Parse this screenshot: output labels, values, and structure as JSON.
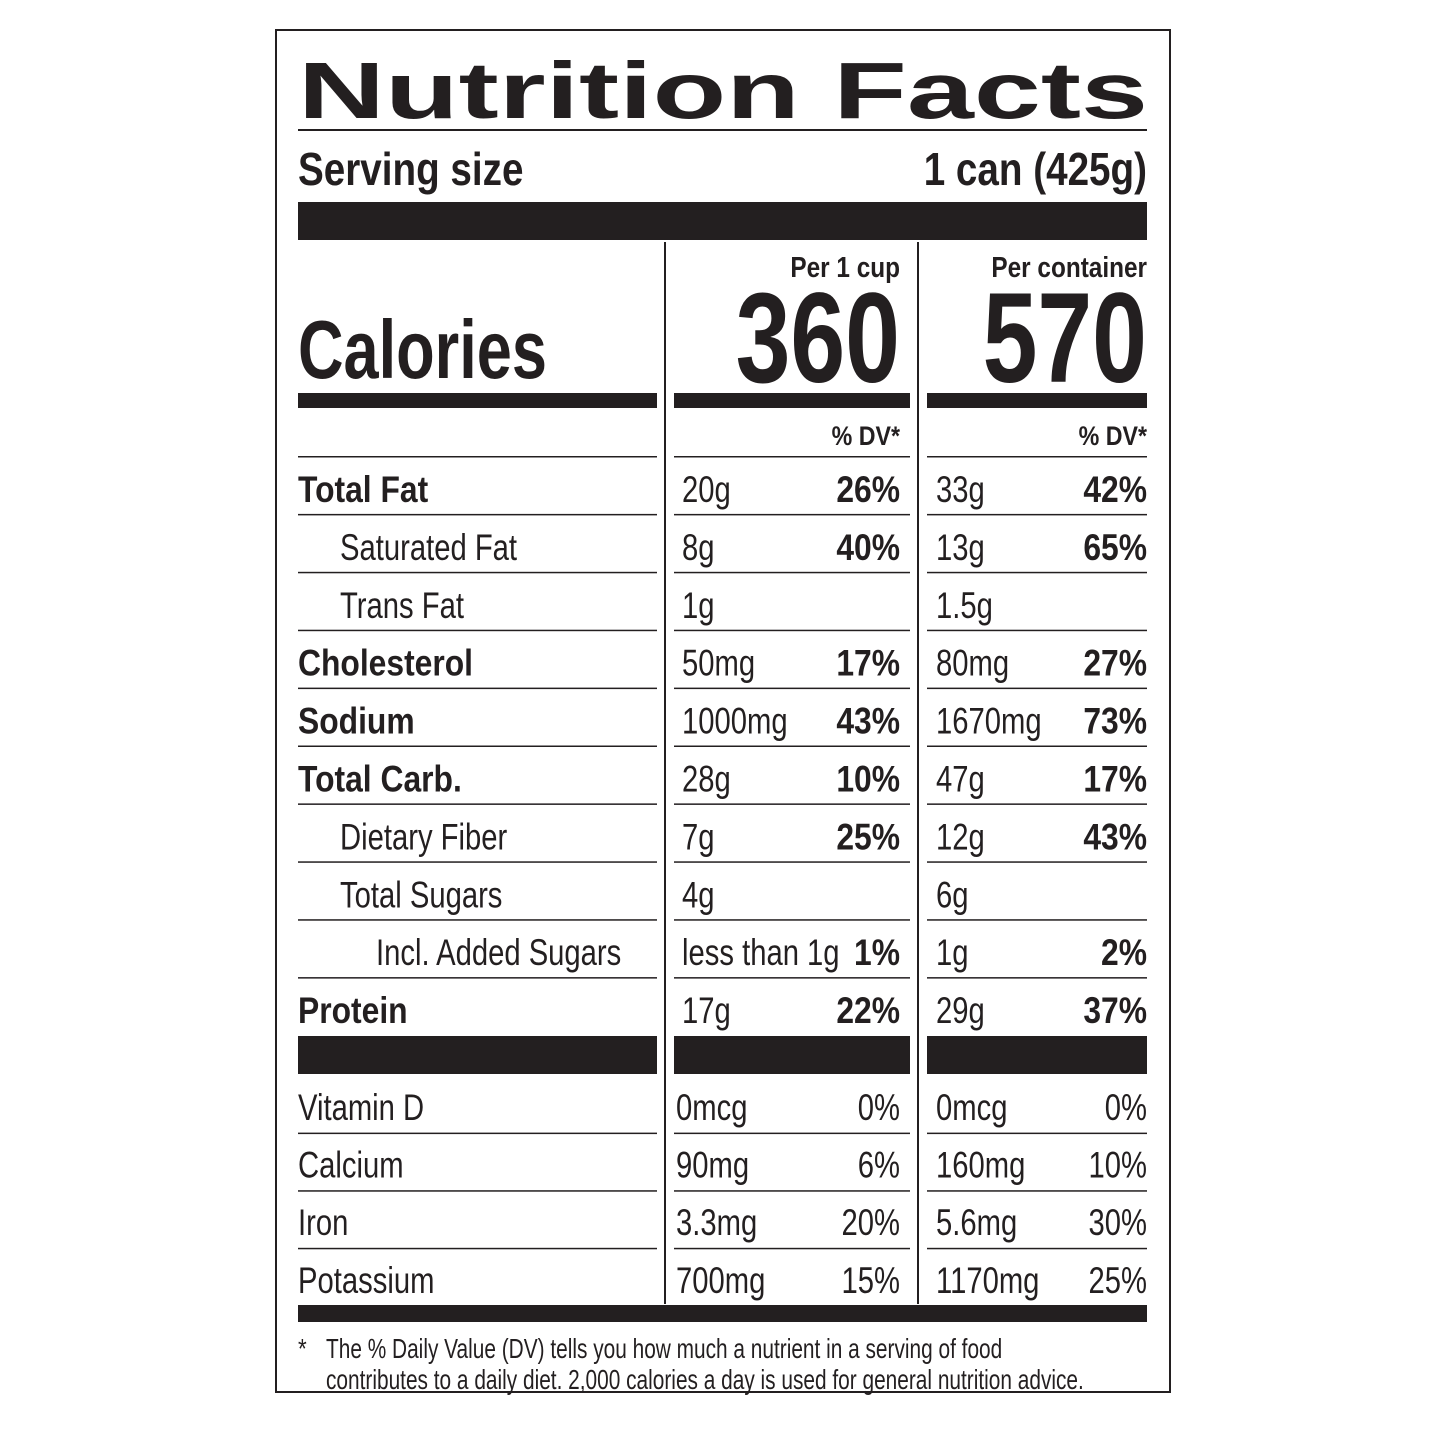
{
  "title": "Nutrition Facts",
  "serving": {
    "label": "Serving size",
    "value": "1 can (425g)"
  },
  "calories_label": "Calories",
  "columns": [
    {
      "header": "Per 1 cup",
      "calories": "360",
      "dv_header": "% DV*"
    },
    {
      "header": "Per container",
      "calories": "570",
      "dv_header": "% DV*"
    }
  ],
  "nutrients": [
    {
      "name": "Total Fat",
      "values": [
        [
          "20g",
          "26%"
        ],
        [
          "33g",
          "42%"
        ]
      ]
    },
    {
      "name": "Saturated Fat",
      "values": [
        [
          "8g",
          "40%"
        ],
        [
          "13g",
          "65%"
        ]
      ]
    },
    {
      "name": "Trans Fat",
      "values": [
        [
          "1g"
        ],
        [
          "1.5g"
        ]
      ]
    },
    {
      "name": "Cholesterol",
      "values": [
        [
          "50mg",
          "17%"
        ],
        [
          "80mg",
          "27%"
        ]
      ]
    },
    {
      "name": "Sodium",
      "values": [
        [
          "1000mg",
          "43%"
        ],
        [
          "1670mg",
          "73%"
        ]
      ]
    },
    {
      "name": "Total Carb.",
      "values": [
        [
          "28g",
          "10%"
        ],
        [
          "47g",
          "17%"
        ]
      ]
    },
    {
      "name": "Dietary Fiber",
      "values": [
        [
          "7g",
          "25%"
        ],
        [
          "12g",
          "43%"
        ]
      ]
    },
    {
      "name": "Total Sugars",
      "values": [
        [
          "4g"
        ],
        [
          "6g"
        ]
      ]
    },
    {
      "name": "Incl. Added Sugars",
      "values": [
        [
          "less than 1g",
          "1%"
        ],
        [
          "1g",
          "2%"
        ]
      ]
    },
    {
      "name": "Protein",
      "values": [
        [
          "17g",
          "22%"
        ],
        [
          "29g",
          "37%"
        ]
      ]
    }
  ],
  "vitamins": [
    {
      "name": "Vitamin D",
      "values": [
        [
          "0mcg",
          "0%"
        ],
        [
          "0mcg",
          "0%"
        ]
      ]
    },
    {
      "name": "Calcium",
      "values": [
        [
          "90mg",
          "6%"
        ],
        [
          "160mg",
          "10%"
        ]
      ]
    },
    {
      "name": "Iron",
      "values": [
        [
          "3.3mg",
          "20%"
        ],
        [
          "5.6mg",
          "30%"
        ]
      ]
    },
    {
      "name": "Potassium",
      "values": [
        [
          "700mg",
          "15%"
        ],
        [
          "1170mg",
          "25%"
        ]
      ]
    }
  ],
  "footnote": {
    "marker": "*",
    "lines": [
      "The % Daily Value (DV) tells you how much a nutrient in a serving of food",
      "contributes to a daily diet. 2,000 calories a day is used for general nutrition advice."
    ]
  }
}
